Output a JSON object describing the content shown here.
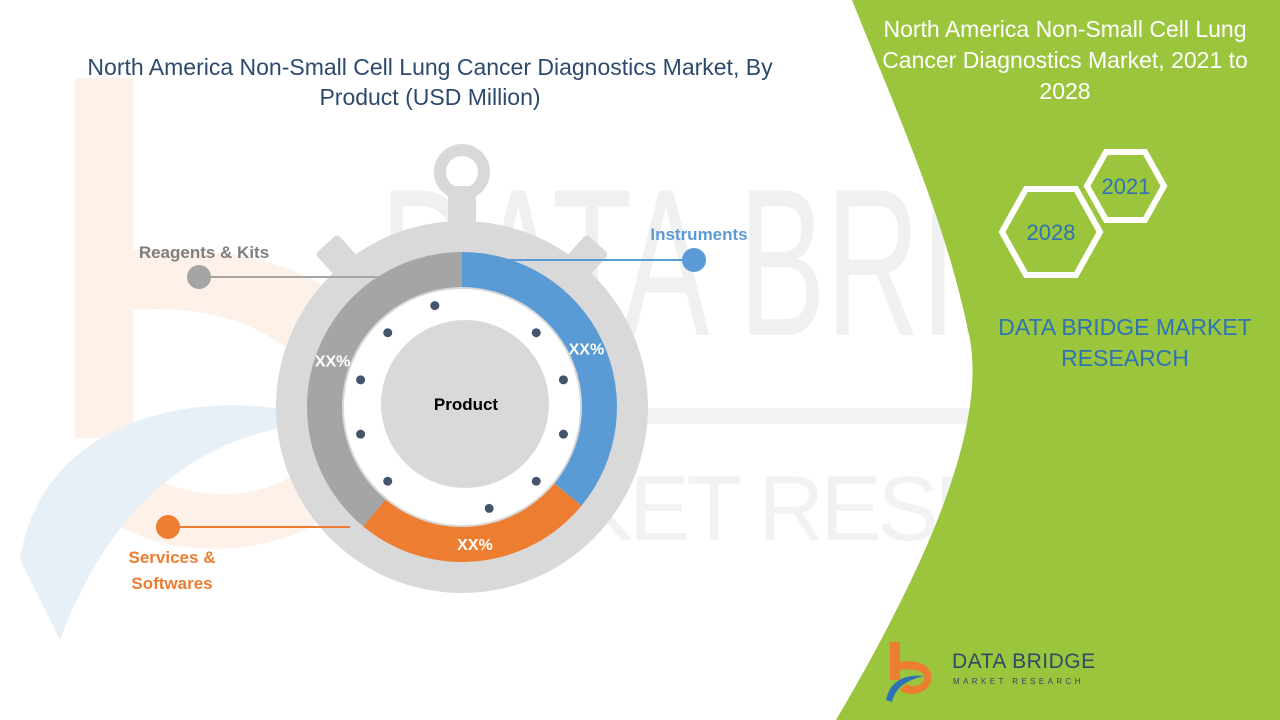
{
  "page": {
    "main_title": "North America  Non-Small Cell Lung Cancer Diagnostics Market, By Product (USD Million)",
    "side_title": "North America  Non-Small Cell Lung Cancer Diagnostics Market, 2021 to 2028",
    "hex_years": [
      "2021",
      "2028"
    ],
    "brand": "DATA BRIDGE MARKET RESEARCH",
    "watermark": {
      "line1": "DATA BRIDGE",
      "line2": "MARKET RESEARCH"
    },
    "footer_logo": {
      "name": "DATA BRIDGE",
      "tagline": "MARKET RESEARCH"
    }
  },
  "colors": {
    "green_panel": "#9bc53d",
    "instruments": "#5b9bd5",
    "services": "#ed7d31",
    "reagents": "#a5a5a5",
    "stopwatch_grey": "#d9d9d9",
    "title_text": "#2c4a6e",
    "dot": "#44546a"
  },
  "chart_data": {
    "type": "donut",
    "title": "North America  Non-Small Cell Lung Cancer Diagnostics Market, By Product (USD Million)",
    "center_label": "Product",
    "segments": [
      {
        "name": "Instruments",
        "label": "XX%",
        "value": 0.36,
        "color": "#5b9bd5"
      },
      {
        "name": "Services & Softwares",
        "label": "XX%",
        "value": 0.25,
        "color": "#ed7d31"
      },
      {
        "name": "Reagents & Kits",
        "label": "XX%",
        "value": 0.39,
        "color": "#a5a5a5"
      }
    ]
  }
}
